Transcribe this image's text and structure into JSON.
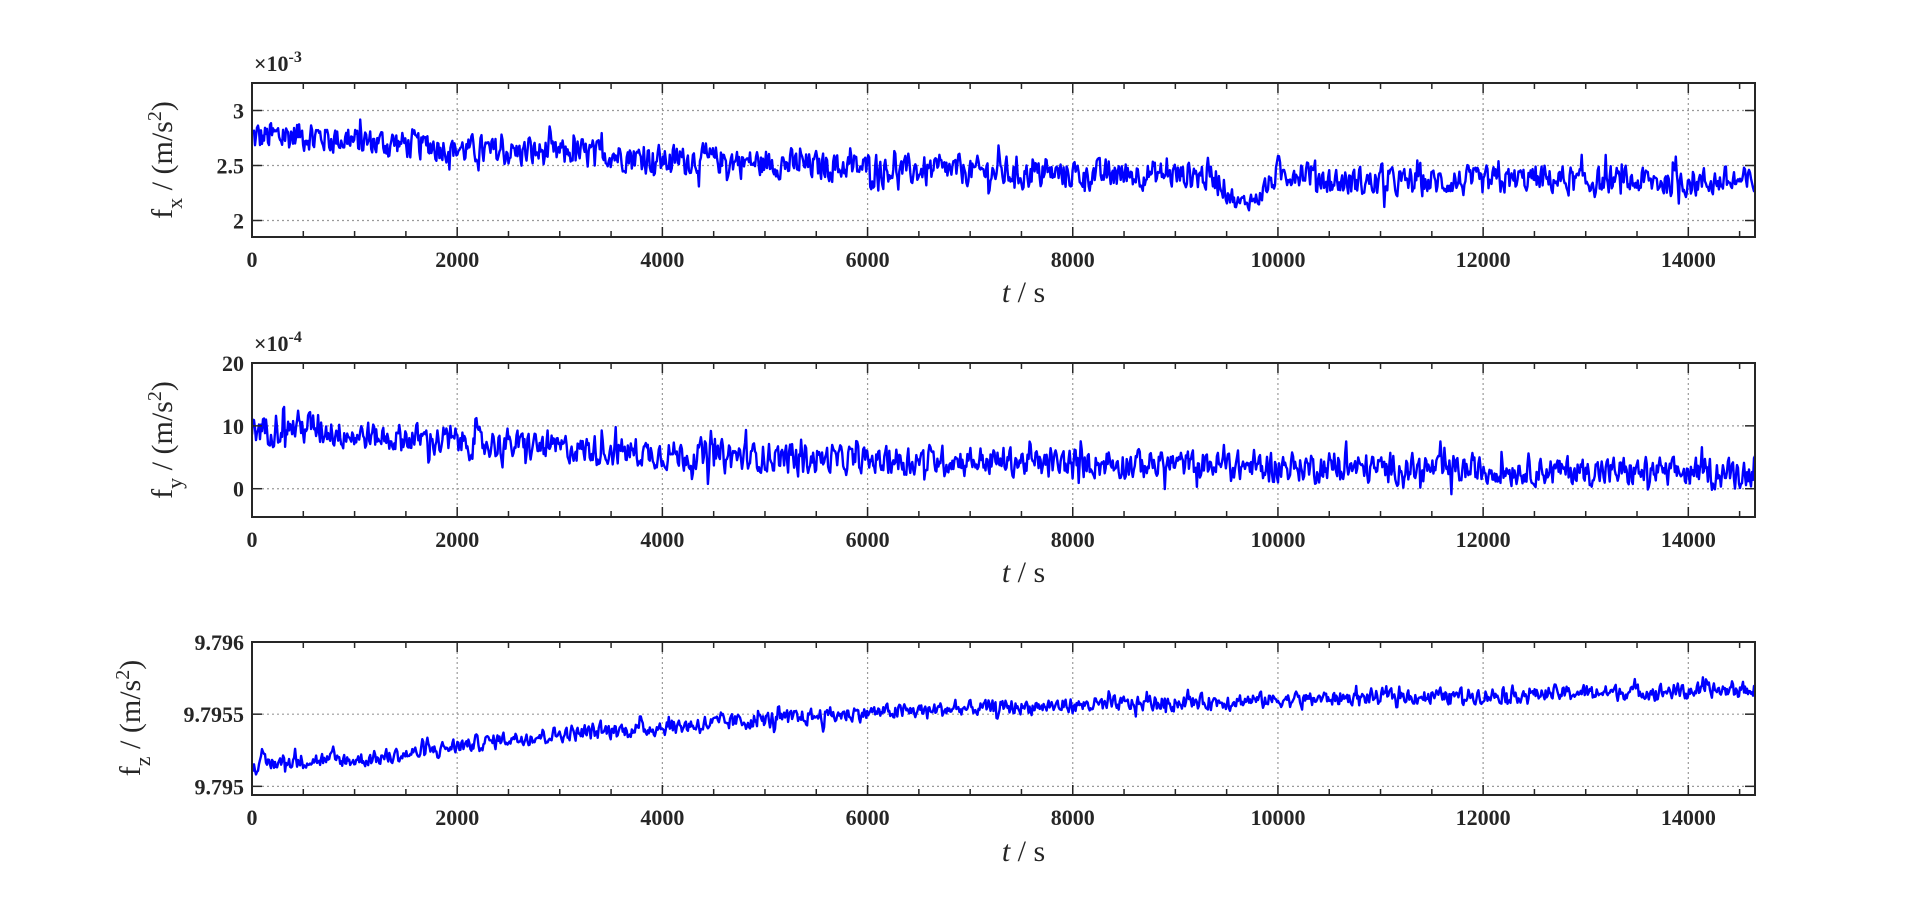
{
  "figure": {
    "line_color": "#0000ff",
    "grid_color": "#9a9a9a",
    "axes_color": "#262626"
  },
  "chart_data": [
    {
      "type": "line",
      "title": "",
      "xlabel_italic": "t",
      "xlabel_unit": " / s",
      "ylabel_base": "f",
      "ylabel_sub": "x",
      "ylabel_unit_pre": " / (m/s",
      "ylabel_unit_sup": "2",
      "ylabel_unit_post": ")",
      "exponent_prefix": "×10",
      "exponent_power": "-3",
      "xlim": [
        0,
        14650
      ],
      "ylim": [
        1.85,
        3.25
      ],
      "xticks": [
        0,
        2000,
        4000,
        6000,
        8000,
        10000,
        12000,
        14000
      ],
      "xtick_labels": [
        "0",
        "2000",
        "4000",
        "6000",
        "8000",
        "10000",
        "12000",
        "14000"
      ],
      "yticks": [
        2,
        2.5,
        3
      ],
      "ytick_labels": [
        "2",
        "2.5",
        "3"
      ],
      "grid": true,
      "series": [
        {
          "x": [
            0,
            500,
            1000,
            1500,
            2000,
            2500,
            3000,
            3500,
            4000,
            4500,
            5000,
            5500,
            6000,
            6500,
            7000,
            7500,
            8000,
            8500,
            9000,
            9400,
            9600,
            9800,
            10000,
            10300,
            10500,
            11000,
            11500,
            12000,
            12500,
            13000,
            13500,
            14000,
            14650
          ],
          "y": [
            2.75,
            2.78,
            2.72,
            2.7,
            2.65,
            2.62,
            2.62,
            2.6,
            2.55,
            2.55,
            2.52,
            2.5,
            2.48,
            2.45,
            2.45,
            2.43,
            2.42,
            2.42,
            2.42,
            2.4,
            2.15,
            2.2,
            2.42,
            2.45,
            2.35,
            2.35,
            2.35,
            2.35,
            2.38,
            2.35,
            2.35,
            2.35,
            2.35
          ],
          "noise": [
            0.25,
            0.22,
            0.2,
            0.2,
            0.2,
            0.2,
            0.2,
            0.2,
            0.2,
            0.2,
            0.2,
            0.2,
            0.2,
            0.2,
            0.2,
            0.2,
            0.2,
            0.2,
            0.2,
            0.22,
            0.12,
            0.12,
            0.2,
            0.2,
            0.2,
            0.2,
            0.2,
            0.2,
            0.2,
            0.2,
            0.2,
            0.2,
            0.2
          ]
        }
      ]
    },
    {
      "type": "line",
      "title": "",
      "xlabel_italic": "t",
      "xlabel_unit": " / s",
      "ylabel_base": "f",
      "ylabel_sub": "y",
      "ylabel_unit_pre": " / (m/s",
      "ylabel_unit_sup": "2",
      "ylabel_unit_post": ")",
      "exponent_prefix": "×10",
      "exponent_power": "-4",
      "xlim": [
        0,
        14650
      ],
      "ylim": [
        -4.5,
        20
      ],
      "xticks": [
        0,
        2000,
        4000,
        6000,
        8000,
        10000,
        12000,
        14000
      ],
      "xtick_labels": [
        "0",
        "2000",
        "4000",
        "6000",
        "8000",
        "10000",
        "12000",
        "14000"
      ],
      "yticks": [
        0,
        10,
        20
      ],
      "ytick_labels": [
        "0",
        "10",
        "20"
      ],
      "grid": true,
      "series": [
        {
          "x": [
            0,
            500,
            1000,
            1500,
            2000,
            2500,
            3000,
            3500,
            4000,
            4500,
            5000,
            6000,
            7000,
            8000,
            9000,
            10000,
            11000,
            12000,
            13000,
            14000,
            14650
          ],
          "y": [
            9.5,
            10,
            8.5,
            8,
            7.5,
            7,
            6.5,
            6,
            5.5,
            5.2,
            5,
            4.5,
            4.5,
            4,
            4,
            3.5,
            3.2,
            3,
            2.8,
            2.5,
            2.5
          ],
          "noise": [
            4,
            4,
            3.5,
            3.5,
            4,
            3.5,
            3.5,
            3.5,
            3.5,
            4,
            3.5,
            3.5,
            3.5,
            3.5,
            3.5,
            3.5,
            3.5,
            3.5,
            3.5,
            3.5,
            3.5
          ]
        }
      ]
    },
    {
      "type": "line",
      "title": "",
      "xlabel_italic": "t",
      "xlabel_unit": " / s",
      "ylabel_base": "f",
      "ylabel_sub": "z",
      "ylabel_unit_pre": " / (m/s",
      "ylabel_unit_sup": "2",
      "ylabel_unit_post": ")",
      "exponent_prefix": "",
      "exponent_power": "",
      "xlim": [
        0,
        14650
      ],
      "ylim": [
        9.79494,
        9.796
      ],
      "xticks": [
        0,
        2000,
        4000,
        6000,
        8000,
        10000,
        12000,
        14000
      ],
      "xtick_labels": [
        "0",
        "2000",
        "4000",
        "6000",
        "8000",
        "10000",
        "12000",
        "14000"
      ],
      "yticks": [
        9.795,
        9.7955,
        9.796
      ],
      "ytick_labels": [
        "9.795",
        "9.7955",
        "9.796"
      ],
      "grid": true,
      "series": [
        {
          "x": [
            0,
            500,
            1000,
            1500,
            2000,
            2500,
            3000,
            4000,
            5000,
            6000,
            7000,
            8000,
            9000,
            10000,
            11000,
            12000,
            13000,
            14000,
            14650
          ],
          "y": [
            9.79515,
            9.79518,
            9.79518,
            9.79522,
            9.79528,
            9.79533,
            9.79536,
            9.79541,
            9.79546,
            9.79551,
            9.79554,
            9.79556,
            9.79558,
            9.7956,
            9.79562,
            9.79563,
            9.79565,
            9.79566,
            9.79567
          ],
          "noise": [
            9e-05,
            8e-05,
            8e-05,
            8e-05,
            8e-05,
            8e-05,
            8e-05,
            9e-05,
            9e-05,
            8e-05,
            8e-05,
            8e-05,
            8e-05,
            8e-05,
            8e-05,
            8e-05,
            8e-05,
            8e-05,
            8e-05
          ]
        }
      ]
    }
  ]
}
